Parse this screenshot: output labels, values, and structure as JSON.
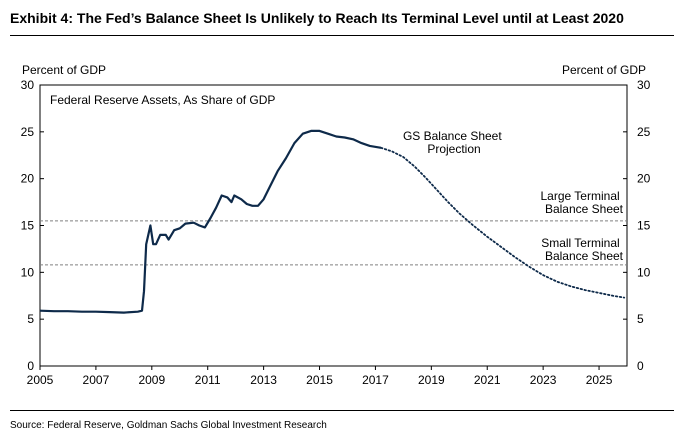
{
  "exhibit": {
    "title": "Exhibit 4: The Fed’s Balance Sheet Is Unlikely to Reach Its Terminal Level until at Least 2020",
    "source": "Source: Federal Reserve, Goldman Sachs Global Investment Research"
  },
  "colors": {
    "series": "#0e2a4a",
    "reference_line": "#808080",
    "text": "#000000"
  },
  "chart_data": {
    "type": "line",
    "title": "Federal Reserve Assets, As Share of GDP",
    "ylabel_left": "Percent of GDP",
    "ylabel_right": "Percent of GDP",
    "xlim": [
      2005,
      2026
    ],
    "ylim": [
      0,
      30
    ],
    "x_ticks": [
      "2005",
      "2007",
      "2009",
      "2011",
      "2013",
      "2015",
      "2017",
      "2019",
      "2021",
      "2023",
      "2025"
    ],
    "y_ticks": [
      "0",
      "5",
      "10",
      "15",
      "20",
      "25",
      "30"
    ],
    "grid": false,
    "series": [
      {
        "name": "Federal Reserve Assets",
        "style": "solid",
        "points": [
          [
            2005.0,
            5.9
          ],
          [
            2005.5,
            5.85
          ],
          [
            2006.0,
            5.85
          ],
          [
            2006.5,
            5.8
          ],
          [
            2007.0,
            5.8
          ],
          [
            2007.5,
            5.75
          ],
          [
            2008.0,
            5.7
          ],
          [
            2008.5,
            5.8
          ],
          [
            2008.65,
            5.9
          ],
          [
            2008.72,
            8.0
          ],
          [
            2008.8,
            13.0
          ],
          [
            2008.95,
            15.0
          ],
          [
            2009.05,
            13.0
          ],
          [
            2009.15,
            13.0
          ],
          [
            2009.3,
            14.0
          ],
          [
            2009.5,
            14.0
          ],
          [
            2009.6,
            13.5
          ],
          [
            2009.8,
            14.5
          ],
          [
            2010.0,
            14.7
          ],
          [
            2010.2,
            15.2
          ],
          [
            2010.5,
            15.3
          ],
          [
            2010.7,
            15.0
          ],
          [
            2010.9,
            14.8
          ],
          [
            2011.1,
            15.8
          ],
          [
            2011.3,
            16.9
          ],
          [
            2011.5,
            18.2
          ],
          [
            2011.7,
            18.0
          ],
          [
            2011.85,
            17.5
          ],
          [
            2011.95,
            18.2
          ],
          [
            2012.2,
            17.8
          ],
          [
            2012.4,
            17.3
          ],
          [
            2012.6,
            17.1
          ],
          [
            2012.8,
            17.1
          ],
          [
            2013.0,
            17.8
          ],
          [
            2013.2,
            19.0
          ],
          [
            2013.5,
            20.8
          ],
          [
            2013.8,
            22.2
          ],
          [
            2014.1,
            23.8
          ],
          [
            2014.4,
            24.8
          ],
          [
            2014.7,
            25.1
          ],
          [
            2015.0,
            25.1
          ],
          [
            2015.3,
            24.8
          ],
          [
            2015.6,
            24.5
          ],
          [
            2015.9,
            24.4
          ],
          [
            2016.2,
            24.2
          ],
          [
            2016.5,
            23.8
          ],
          [
            2016.8,
            23.5
          ],
          [
            2017.2,
            23.3
          ]
        ]
      },
      {
        "name": "GS Balance Sheet Projection",
        "style": "dotted",
        "points": [
          [
            2017.2,
            23.3
          ],
          [
            2017.6,
            22.9
          ],
          [
            2018.0,
            22.3
          ],
          [
            2018.4,
            21.3
          ],
          [
            2018.8,
            20.1
          ],
          [
            2019.2,
            18.8
          ],
          [
            2019.6,
            17.5
          ],
          [
            2020.0,
            16.3
          ],
          [
            2020.5,
            15.0
          ],
          [
            2021.0,
            13.8
          ],
          [
            2021.5,
            12.7
          ],
          [
            2022.0,
            11.6
          ],
          [
            2022.5,
            10.6
          ],
          [
            2023.0,
            9.7
          ],
          [
            2023.5,
            9.0
          ],
          [
            2024.0,
            8.5
          ],
          [
            2024.5,
            8.1
          ],
          [
            2025.0,
            7.8
          ],
          [
            2025.5,
            7.5
          ],
          [
            2025.9,
            7.3
          ]
        ]
      }
    ],
    "reference_lines": [
      {
        "label_line1": "Large Terminal",
        "label_line2": "Balance Sheet",
        "y": 15.5,
        "style": "dashed"
      },
      {
        "label_line1": "Small Terminal",
        "label_line2": "Balance Sheet",
        "y": 10.8,
        "style": "dashed"
      }
    ],
    "annotations": [
      {
        "label_line1": "GS Balance Sheet",
        "label_line2": "Projection"
      }
    ]
  }
}
